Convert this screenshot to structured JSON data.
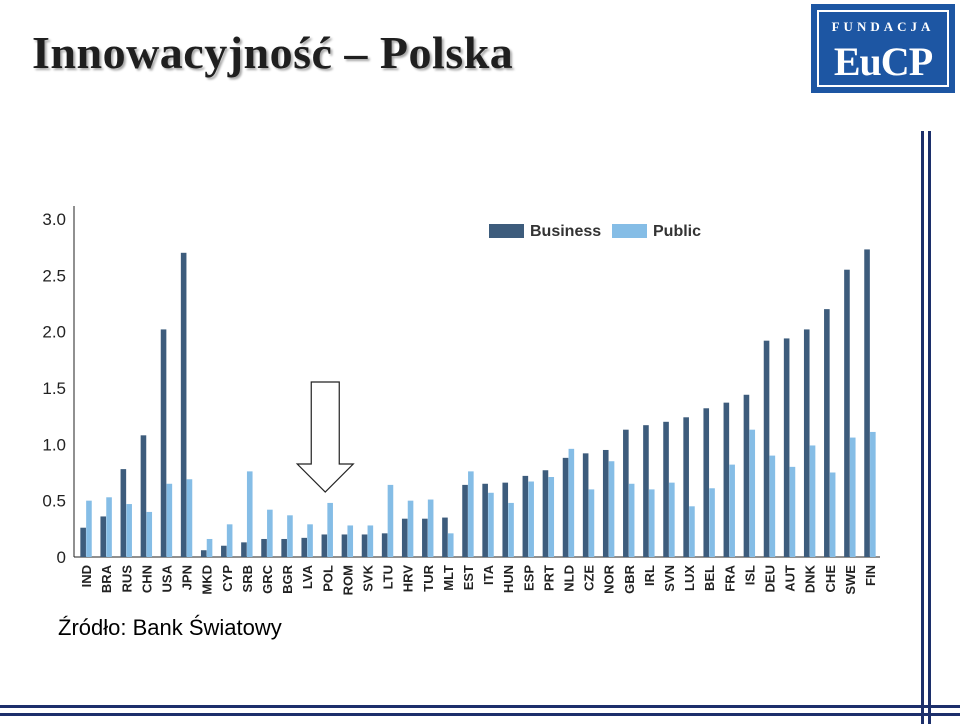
{
  "slide": {
    "title": "Innowacyjność – Polska",
    "source": "Źródło: Bank Światowy"
  },
  "logo": {
    "top": "FUNDACJA",
    "main": "EuCP"
  },
  "colors": {
    "business": "#3d5c7c",
    "public": "#85bde6",
    "logo_bg": "#1d56a3",
    "deco_lines": "#1c2f6b"
  },
  "annotation": {
    "type": "down-arrow",
    "target_category": "POL"
  },
  "chart_data": {
    "type": "bar",
    "categories": [
      "IND",
      "BRA",
      "RUS",
      "CHN",
      "USA",
      "JPN",
      "MKD",
      "CYP",
      "SRB",
      "GRC",
      "BGR",
      "LVA",
      "POL",
      "ROM",
      "SVK",
      "LTU",
      "HRV",
      "TUR",
      "MLT",
      "EST",
      "ITA",
      "HUN",
      "ESP",
      "PRT",
      "NLD",
      "CZE",
      "NOR",
      "GBR",
      "IRL",
      "SVN",
      "LUX",
      "BEL",
      "FRA",
      "ISL",
      "DEU",
      "AUT",
      "DNK",
      "CHE",
      "SWE",
      "FIN"
    ],
    "series": [
      {
        "name": "Business",
        "values": [
          0.26,
          0.36,
          0.78,
          1.08,
          2.02,
          2.7,
          0.06,
          0.1,
          0.13,
          0.16,
          0.16,
          0.17,
          0.2,
          0.2,
          0.2,
          0.21,
          0.34,
          0.34,
          0.35,
          0.64,
          0.65,
          0.66,
          0.72,
          0.77,
          0.88,
          0.92,
          0.95,
          1.13,
          1.17,
          1.2,
          1.24,
          1.32,
          1.37,
          1.44,
          1.92,
          1.94,
          2.02,
          2.2,
          2.55,
          2.73
        ]
      },
      {
        "name": "Public",
        "values": [
          0.5,
          0.53,
          0.47,
          0.4,
          0.65,
          0.69,
          0.16,
          0.29,
          0.76,
          0.42,
          0.37,
          0.29,
          0.48,
          0.28,
          0.28,
          0.64,
          0.5,
          0.51,
          0.21,
          0.76,
          0.57,
          0.48,
          0.67,
          0.71,
          0.96,
          0.6,
          0.85,
          0.65,
          0.6,
          0.66,
          0.45,
          0.61,
          0.82,
          1.13,
          0.9,
          0.8,
          0.99,
          0.75,
          1.06,
          1.11
        ]
      }
    ],
    "y_ticks": [
      "0",
      "0.5",
      "1.0",
      "1.5",
      "2.0",
      "2.5",
      "3.0"
    ],
    "ylim": [
      0,
      3.0
    ],
    "grid": false,
    "legend": "top-right"
  }
}
